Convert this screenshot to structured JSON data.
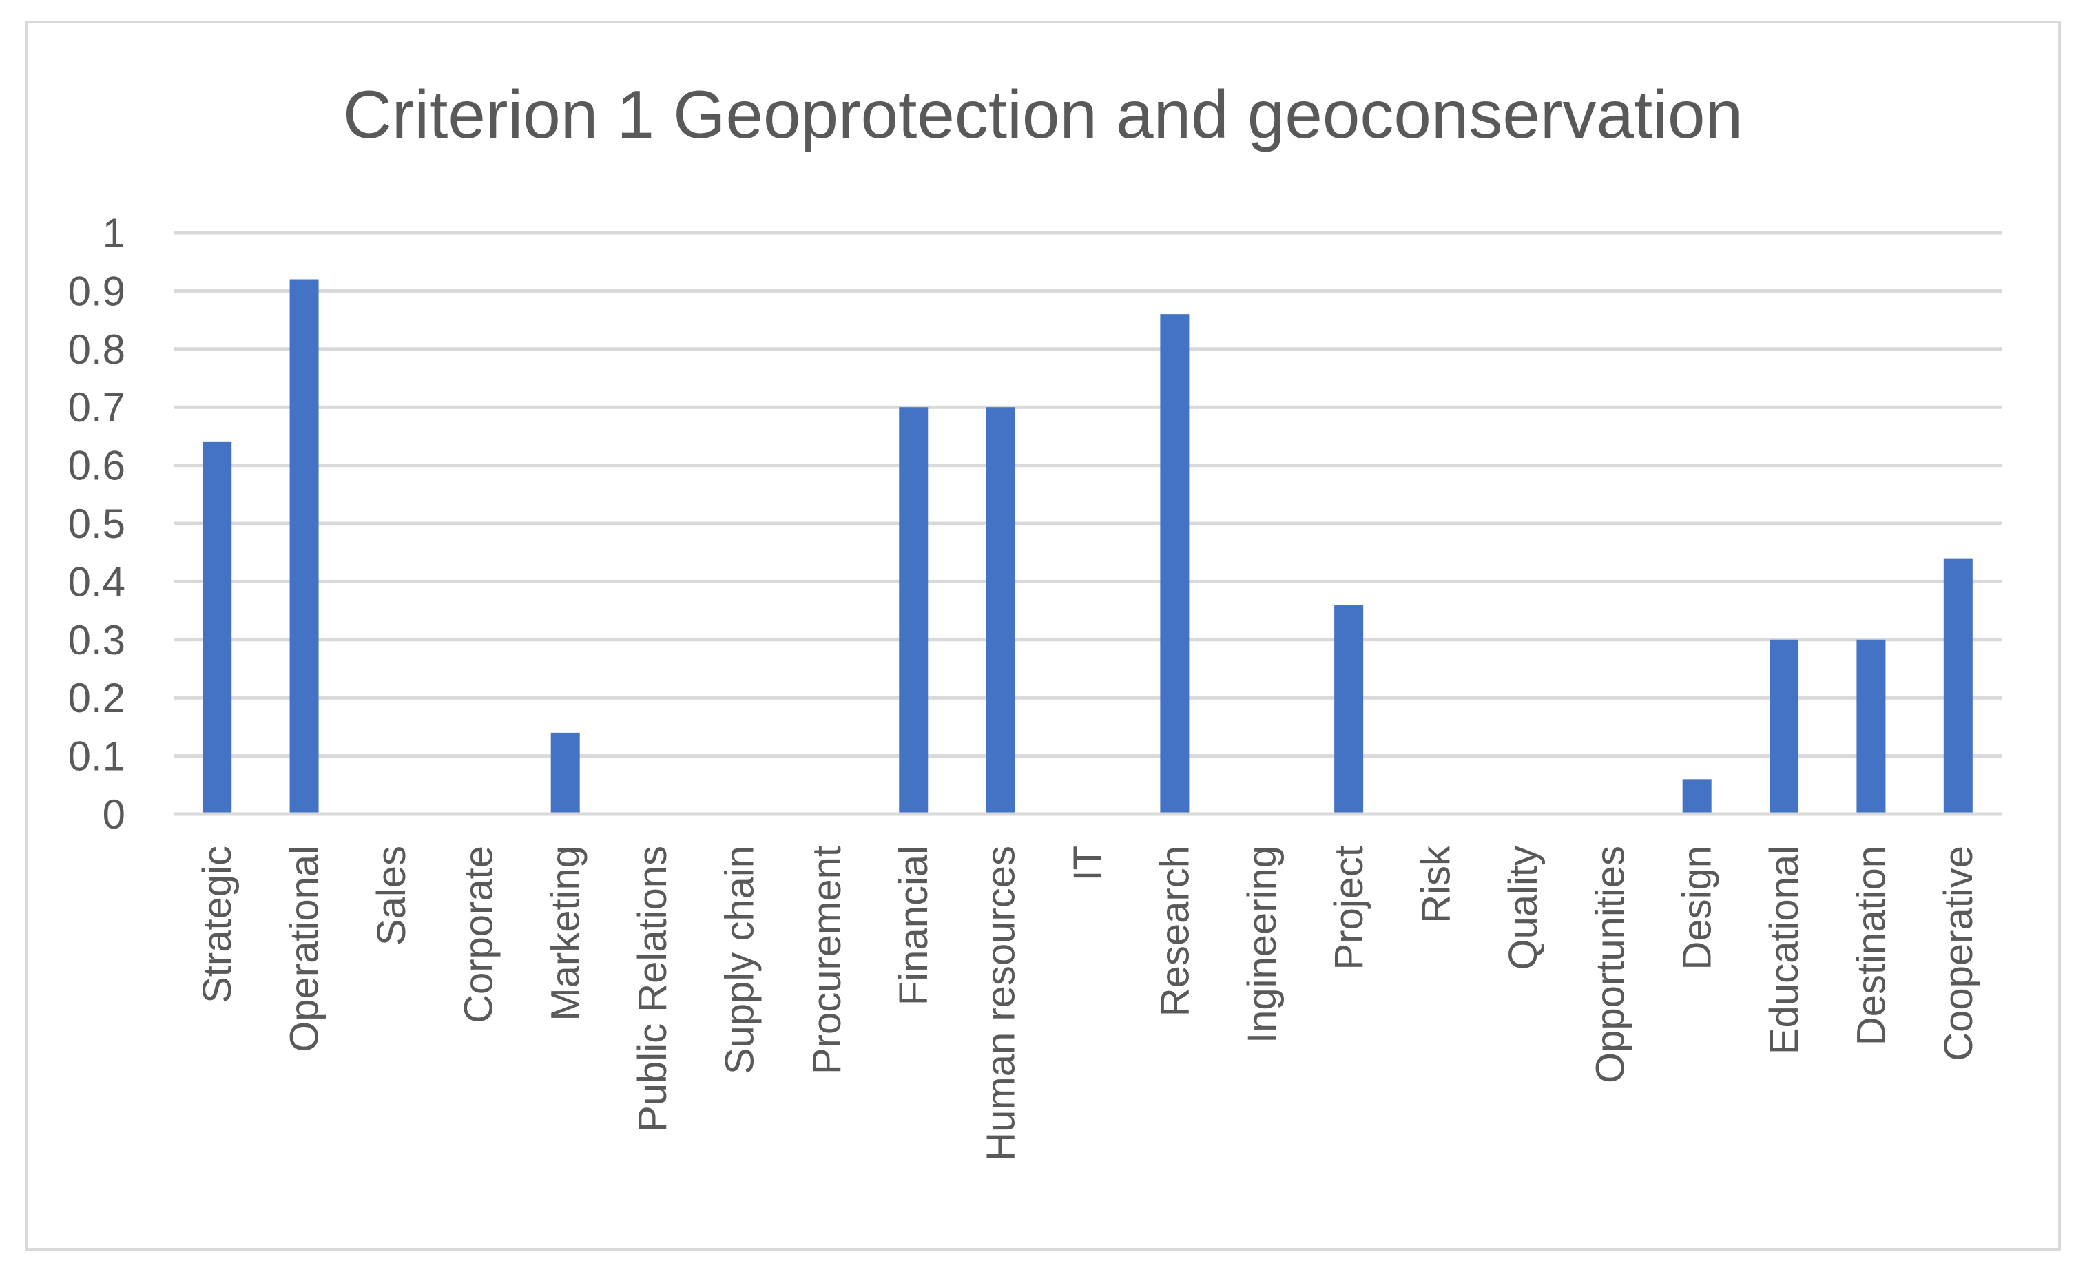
{
  "chart_data": {
    "type": "bar",
    "title": "Criterion 1 Geoprotection and geoconservation",
    "xlabel": "",
    "ylabel": "",
    "ylim": [
      0,
      1
    ],
    "yticks": [
      "0",
      "0.1",
      "0.2",
      "0.3",
      "0.4",
      "0.5",
      "0.6",
      "0.7",
      "0.8",
      "0.9",
      "1"
    ],
    "grid": true,
    "legend": "none",
    "bar_color": "#4472c4",
    "categories": [
      "Strategic",
      "Operational",
      "Sales",
      "Corporate",
      "Marketing",
      "Public Relations",
      "Supply chain",
      "Procurement",
      "Financial",
      "Human resources",
      "IT",
      "Research",
      "Ingineering",
      "Project",
      "Risk",
      "Quality",
      "Opportunities",
      "Design",
      "Educational",
      "Destination",
      "Cooperative"
    ],
    "values": [
      0.64,
      0.92,
      0,
      0,
      0.14,
      0,
      0,
      0,
      0.7,
      0.7,
      0,
      0.86,
      0,
      0.36,
      0,
      0,
      0,
      0.06,
      0.3,
      0.3,
      0.44
    ]
  }
}
